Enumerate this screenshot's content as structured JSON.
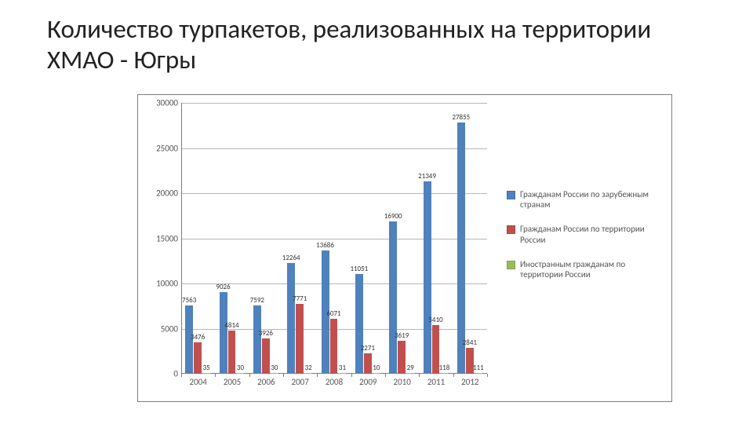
{
  "title": "Количество турпакетов, реализованных на территории ХМАО - Югры",
  "chart": {
    "type": "bar",
    "ylim": [
      0,
      30000
    ],
    "ytick_step": 5000,
    "grid_color": "#b7b7b7",
    "axis_color": "#7d7d7d",
    "background_color": "#ffffff",
    "y_tick_fontsize": 11,
    "x_tick_fontsize": 11,
    "bar_label_fontsize": 9,
    "group_gap_ratio": 0.12,
    "categories": [
      "2004",
      "2005",
      "2006",
      "2007",
      "2008",
      "2009",
      "2010",
      "2011",
      "2012"
    ],
    "series": [
      {
        "name": "Гражданам России по зарубежным странам",
        "color": "#4f81bd",
        "values": [
          7563,
          9026,
          7592,
          12264,
          13686,
          11051,
          16900,
          21349,
          27855
        ]
      },
      {
        "name": "Гражданам России по территории России",
        "color": "#c0504d",
        "values": [
          3476,
          4814,
          3926,
          7771,
          6071,
          2271,
          3619,
          5410,
          2841
        ]
      },
      {
        "name": "Иностранным гражданам по территории России",
        "color": "#9bbb59",
        "values": [
          35,
          30,
          30,
          32,
          31,
          10,
          29,
          118,
          111
        ]
      }
    ],
    "value_labels": {
      "0": [
        "7563",
        "9026",
        "7592",
        "12264",
        "13686",
        "11051",
        "16900",
        "21349",
        "27855"
      ],
      "1": [
        "3476",
        "4814",
        "3926",
        "7771",
        "6071",
        "2271",
        "3619",
        "5410",
        "2841"
      ],
      "2": [
        "35",
        "30",
        "30",
        "32",
        "31",
        "10",
        "29",
        "118",
        "111"
      ]
    }
  },
  "legend": {
    "fontsize": 11
  }
}
